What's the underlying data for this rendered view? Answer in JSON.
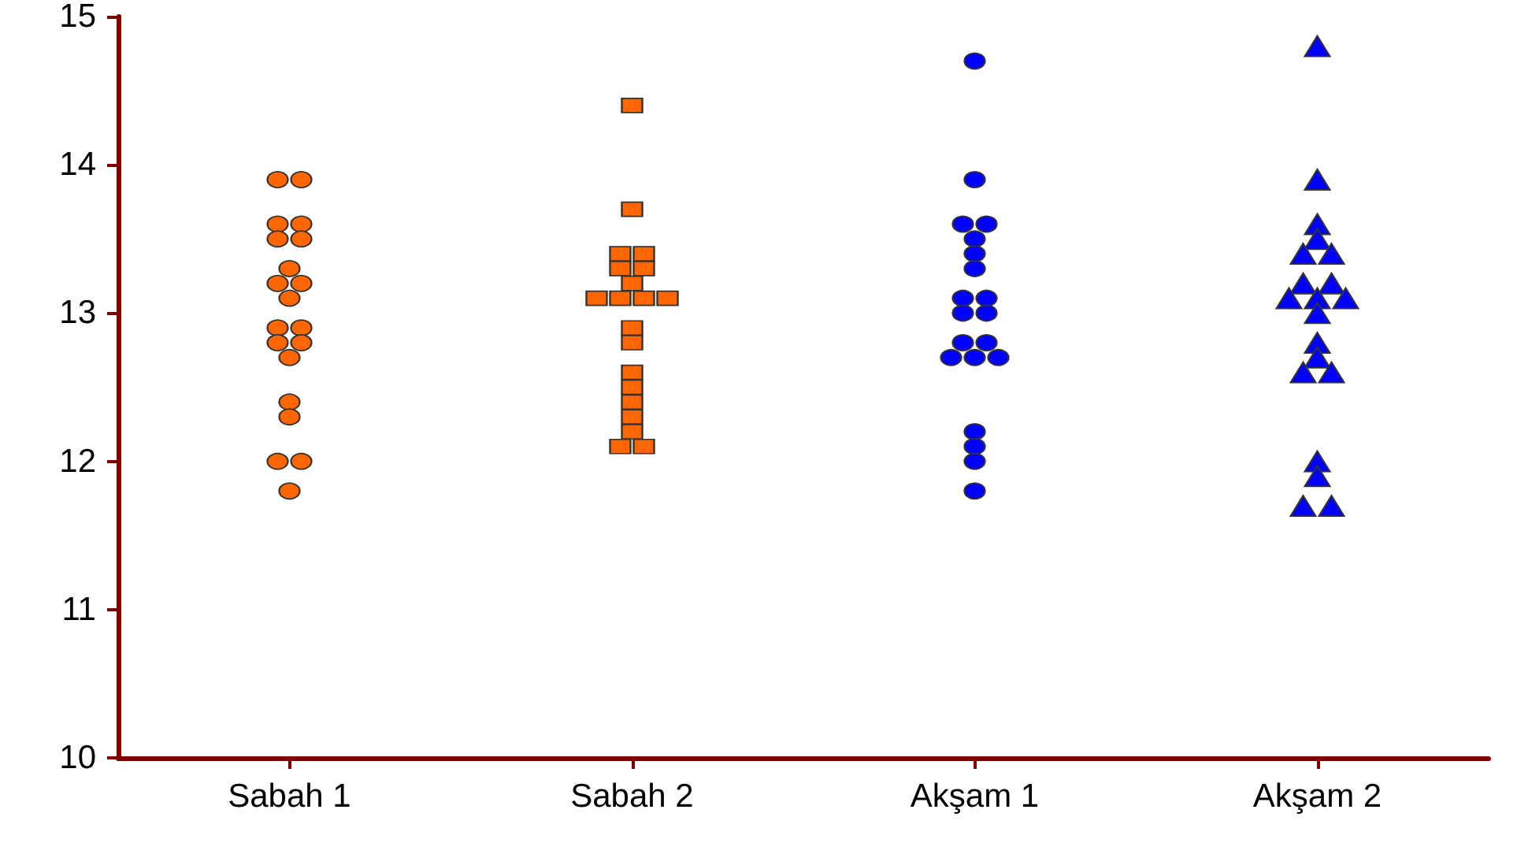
{
  "chart_data": {
    "type": "scatter",
    "categories": [
      "Sabah 1",
      "Sabah 2",
      "Akşam 1",
      "Akşam 2"
    ],
    "series": [
      {
        "color": "#ff6600",
        "marker": "circle",
        "x": [
          "Sabah 1",
          "Sabah 1",
          "Sabah 1",
          "Sabah 1",
          "Sabah 1",
          "Sabah 1",
          "Sabah 1",
          "Sabah 1",
          "Sabah 1",
          "Sabah 1",
          "Sabah 1",
          "Sabah 1",
          "Sabah 1",
          "Sabah 1",
          "Sabah 1",
          "Sabah 1",
          "Sabah 1",
          "Sabah 1",
          "Sabah 1",
          "Sabah 1"
        ],
        "values": [
          13.9,
          13.9,
          13.6,
          13.6,
          13.5,
          13.5,
          13.3,
          13.2,
          13.2,
          13.1,
          12.9,
          12.9,
          12.8,
          12.8,
          12.7,
          12.4,
          12.3,
          12.0,
          12.0,
          11.8
        ]
      },
      {
        "color": "#ff6600",
        "marker": "square",
        "x": [
          "Sabah 2",
          "Sabah 2",
          "Sabah 2",
          "Sabah 2",
          "Sabah 2",
          "Sabah 2",
          "Sabah 2",
          "Sabah 2",
          "Sabah 2",
          "Sabah 2",
          "Sabah 2",
          "Sabah 2",
          "Sabah 2",
          "Sabah 2",
          "Sabah 2",
          "Sabah 2",
          "Sabah 2",
          "Sabah 2",
          "Sabah 2",
          "Sabah 2"
        ],
        "values": [
          14.4,
          13.7,
          13.4,
          13.4,
          13.3,
          13.3,
          13.2,
          13.1,
          13.1,
          13.1,
          13.1,
          12.9,
          12.8,
          12.6,
          12.5,
          12.4,
          12.3,
          12.2,
          12.1,
          12.1
        ]
      },
      {
        "color": "#0000ff",
        "marker": "circle",
        "x": [
          "Akşam 1",
          "Akşam 1",
          "Akşam 1",
          "Akşam 1",
          "Akşam 1",
          "Akşam 1",
          "Akşam 1",
          "Akşam 1",
          "Akşam 1",
          "Akşam 1",
          "Akşam 1",
          "Akşam 1",
          "Akşam 1",
          "Akşam 1",
          "Akşam 1",
          "Akşam 1",
          "Akşam 1",
          "Akşam 1",
          "Akşam 1",
          "Akşam 1"
        ],
        "values": [
          14.7,
          13.9,
          13.6,
          13.6,
          13.5,
          13.4,
          13.3,
          13.1,
          13.1,
          13.0,
          13.0,
          12.8,
          12.8,
          12.7,
          12.7,
          12.7,
          12.2,
          12.1,
          12.0,
          11.8
        ]
      },
      {
        "color": "#0000ff",
        "marker": "triangle",
        "x": [
          "Akşam 2",
          "Akşam 2",
          "Akşam 2",
          "Akşam 2",
          "Akşam 2",
          "Akşam 2",
          "Akşam 2",
          "Akşam 2",
          "Akşam 2",
          "Akşam 2",
          "Akşam 2",
          "Akşam 2",
          "Akşam 2",
          "Akşam 2",
          "Akşam 2",
          "Akşam 2",
          "Akşam 2",
          "Akşam 2",
          "Akşam 2",
          "Akşam 2"
        ],
        "values": [
          14.8,
          13.9,
          13.6,
          13.5,
          13.4,
          13.4,
          13.2,
          13.2,
          13.1,
          13.1,
          13.1,
          13.0,
          12.8,
          12.7,
          12.6,
          12.6,
          12.0,
          11.9,
          11.7,
          11.7
        ]
      }
    ],
    "ylim": [
      10,
      15
    ],
    "yticks": [
      10,
      11,
      12,
      13,
      14,
      15
    ],
    "grid": false
  }
}
